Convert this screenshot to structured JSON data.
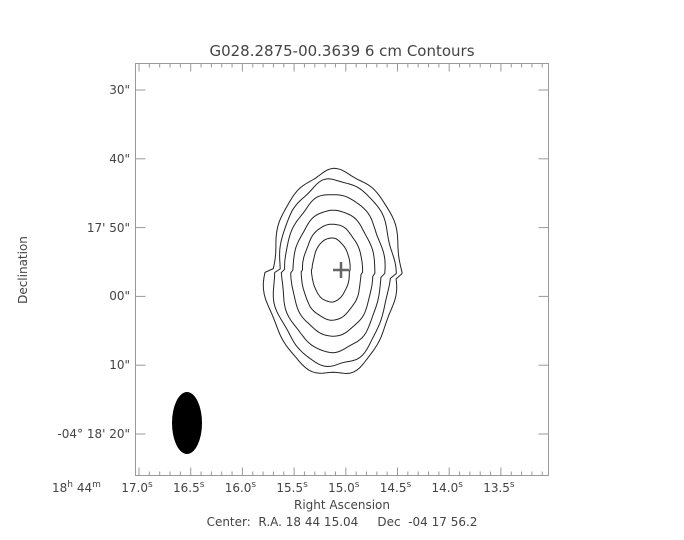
{
  "chart_data": {
    "type": "contour",
    "title": "G028.2875-00.3639 6 cm Contours",
    "xlabel": "Right Ascension",
    "ylabel": "Declination",
    "x_prefix": {
      "h": "18",
      "m": "44"
    },
    "x_ticks": [
      "17.0",
      "16.5",
      "16.0",
      "15.5",
      "15.0",
      "14.5",
      "14.0",
      "13.5"
    ],
    "x_tick_unit": "s",
    "y_prefix": {
      "deg": "-04",
      "arcmin_first": "18'",
      "arcmin_second": "17'"
    },
    "y_ticks": [
      "30\"",
      "40\"",
      "17' 50\"",
      "00\"",
      "10\"",
      "-04° 18' 20\""
    ],
    "y_tick_labels": [
      {
        "text": "30\""
      },
      {
        "text": "40\""
      },
      {
        "text": "17' 50\""
      },
      {
        "text": "00\""
      },
      {
        "text": "10\""
      },
      {
        "text": "-04",
        "sup": "o",
        "rest": " 18' 20\""
      }
    ],
    "x_range_seconds": [
      17.07,
      13.07
    ],
    "y_range_arcsec_offset_from_center": [
      33.8,
      -26.2
    ],
    "n_contours": 6,
    "peak_marker": "plus",
    "beam": "filled-ellipse",
    "footer": "Center:  R.A. 18 44 15.04     Dec  -04 17 56.2"
  }
}
